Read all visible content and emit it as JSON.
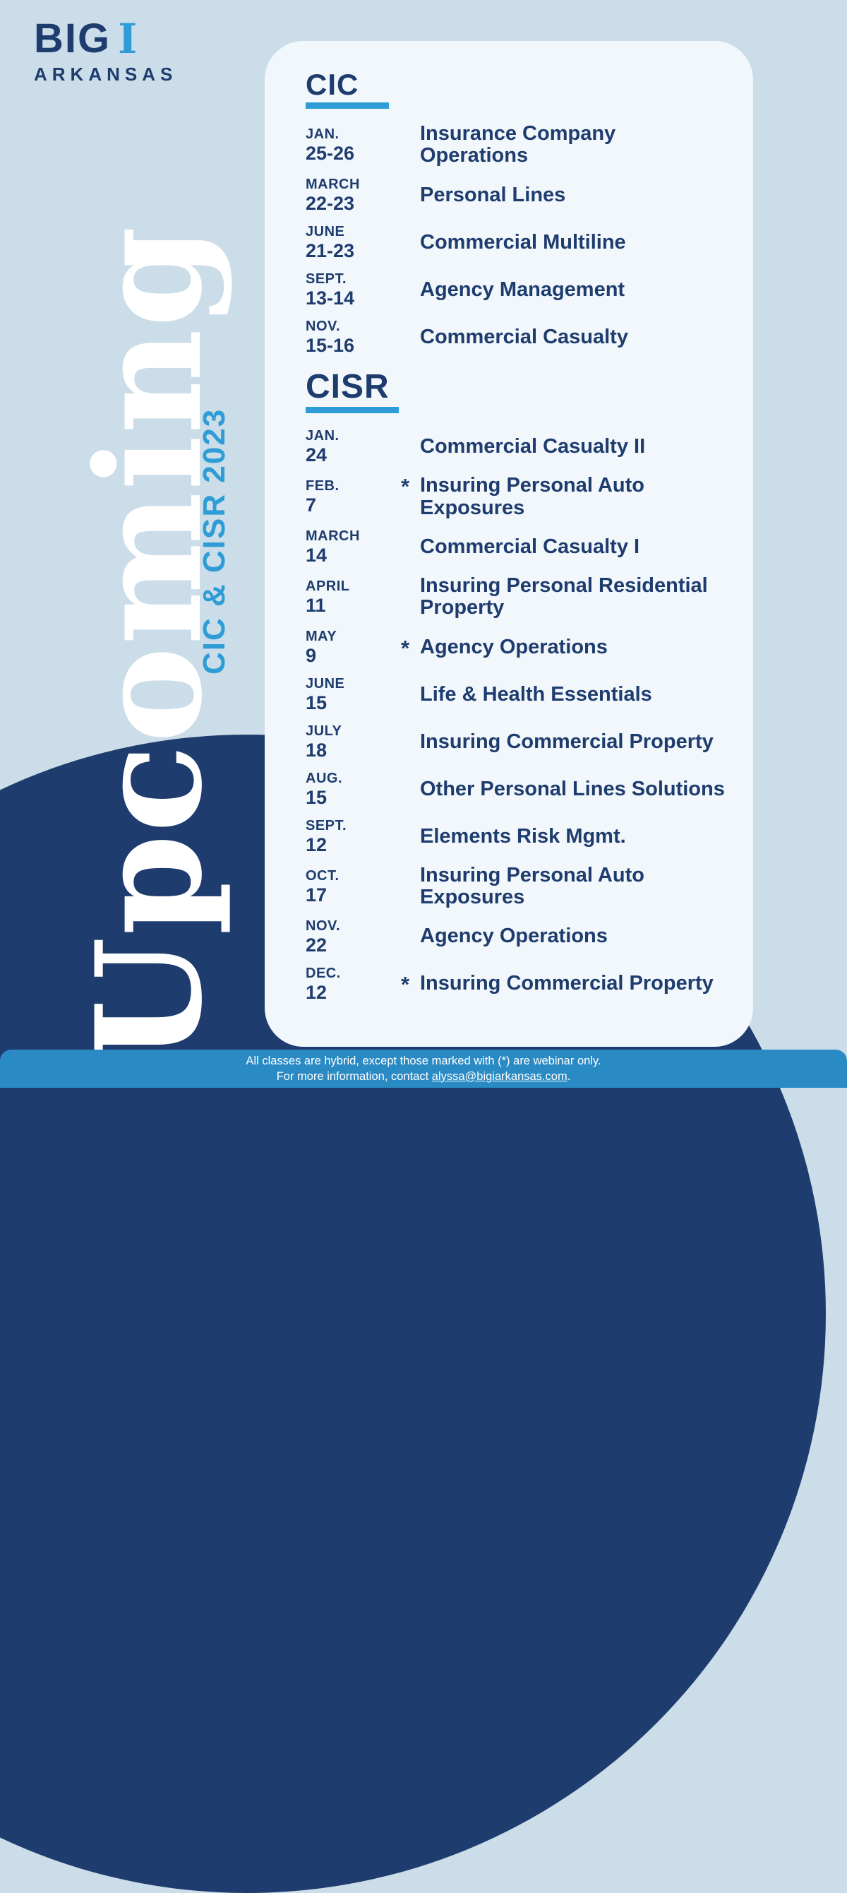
{
  "colors": {
    "navy": "#1e3c6e",
    "accent_blue": "#2e9cd6",
    "background": "#cbdde8",
    "card": "#f1f7fb",
    "footer_bar": "#2a8ac4"
  },
  "logo": {
    "big": "BIG",
    "i": "I",
    "region": "ARKANSAS"
  },
  "vertical": {
    "title": "Upcoming",
    "subtitle": "CIC & CISR 2023"
  },
  "webinar_marker": "*",
  "sections": [
    {
      "heading": "CIC",
      "items": [
        {
          "month": "JAN.",
          "days": "25-26",
          "course": "Insurance Company Operations",
          "webinar_only": false
        },
        {
          "month": "MARCH",
          "days": "22-23",
          "course": "Personal Lines",
          "webinar_only": false
        },
        {
          "month": "JUNE",
          "days": "21-23",
          "course": "Commercial Multiline",
          "webinar_only": false
        },
        {
          "month": "SEPT.",
          "days": "13-14",
          "course": "Agency Management",
          "webinar_only": false
        },
        {
          "month": "NOV.",
          "days": "15-16",
          "course": "Commercial Casualty",
          "webinar_only": false
        }
      ]
    },
    {
      "heading": "CISR",
      "items": [
        {
          "month": "JAN.",
          "days": "24",
          "course": "Commercial Casualty II",
          "webinar_only": false
        },
        {
          "month": "FEB.",
          "days": "7",
          "course": "Insuring Personal Auto Exposures",
          "webinar_only": true
        },
        {
          "month": "MARCH",
          "days": "14",
          "course": "Commercial Casualty I",
          "webinar_only": false
        },
        {
          "month": "APRIL",
          "days": "11",
          "course": "Insuring Personal Residential Property",
          "webinar_only": false
        },
        {
          "month": "MAY",
          "days": "9",
          "course": "Agency Operations",
          "webinar_only": true
        },
        {
          "month": "JUNE",
          "days": "15",
          "course": "Life & Health Essentials",
          "webinar_only": false
        },
        {
          "month": "JULY",
          "days": "18",
          "course": "Insuring Commercial Property",
          "webinar_only": false
        },
        {
          "month": "AUG.",
          "days": "15",
          "course": "Other Personal Lines Solutions",
          "webinar_only": false
        },
        {
          "month": "SEPT.",
          "days": "12",
          "course": "Elements Risk Mgmt.",
          "webinar_only": false
        },
        {
          "month": "OCT.",
          "days": "17",
          "course": "Insuring Personal Auto Exposures",
          "webinar_only": false
        },
        {
          "month": "NOV.",
          "days": "22",
          "course": "Agency Operations",
          "webinar_only": false
        },
        {
          "month": "DEC.",
          "days": "12",
          "course": "Insuring Commercial Property",
          "webinar_only": true
        }
      ]
    }
  ],
  "footer": {
    "line1": "All classes are hybrid, except those marked with (*) are webinar only.",
    "line2_prefix": "For more information, contact ",
    "email": "alyssa@bigiarkansas.com",
    "line2_suffix": "."
  }
}
